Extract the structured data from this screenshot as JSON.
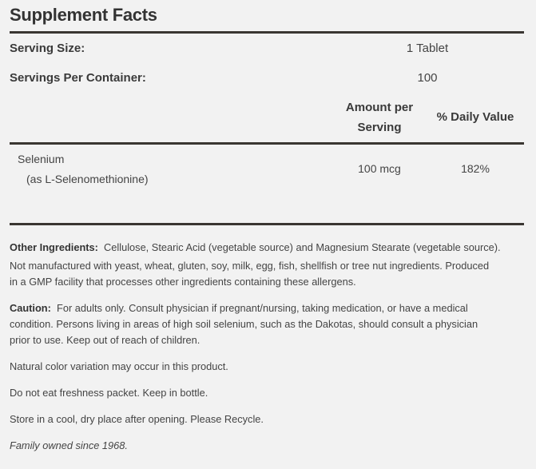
{
  "title": "Supplement Facts",
  "serving_size": {
    "label": "Serving Size:",
    "value": "1 Tablet"
  },
  "servings_per_container": {
    "label": "Servings Per Container:",
    "value": "100"
  },
  "columns": {
    "amount_line1": "Amount per",
    "amount_line2": "Serving",
    "daily_value": "% Daily Value"
  },
  "nutrients": [
    {
      "name": "Selenium",
      "sub": "(as L-Selenomethionine)",
      "amount": "100 mcg",
      "daily_value": "182%"
    }
  ],
  "other_ingredients": {
    "label": "Other Ingredients:",
    "text": "Cellulose, Stearic Acid (vegetable source) and Magnesium Stearate (vegetable source)."
  },
  "allergen_line1": "Not manufactured with yeast, wheat, gluten, soy, milk, egg, fish, shellfish or tree nut ingredients. Produced",
  "allergen_line2": "in a GMP facility that processes other ingredients containing these allergens.",
  "caution": {
    "label": "Caution:",
    "line1": "For adults only. Consult physician if pregnant/nursing, taking medication, or have a medical",
    "line2": "condition. Persons living in areas of high soil selenium, such as the Dakotas, should consult a physician",
    "line3": "prior to use. Keep out of reach of children."
  },
  "notes": [
    "Natural color variation may occur in this product.",
    "Do not eat freshness packet. Keep in bottle.",
    "Store in a cool, dry place after opening. Please Recycle."
  ],
  "family": "Family owned since 1968."
}
